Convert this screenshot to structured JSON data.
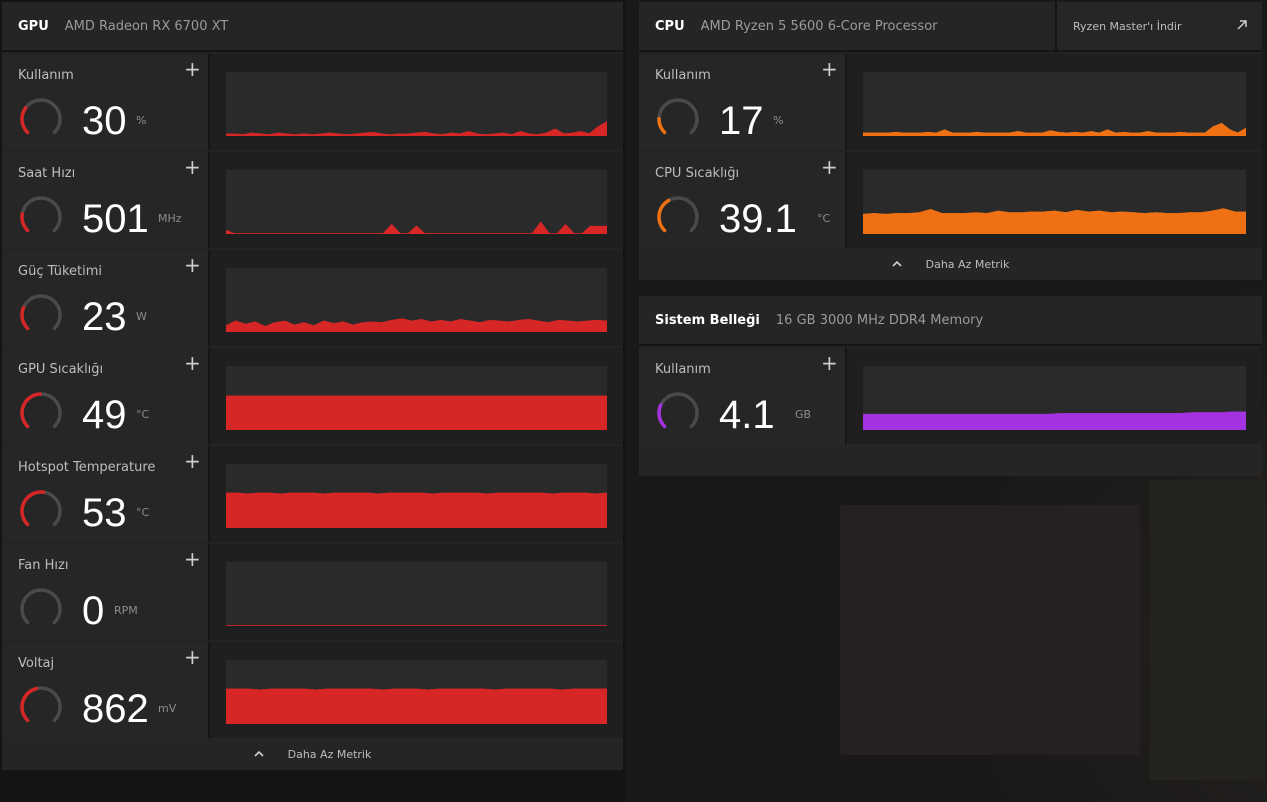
{
  "gpu": {
    "title": "GPU",
    "device": "AMD Radeon RX 6700 XT",
    "accent": "#d62626",
    "metrics": [
      {
        "label": "Kullanım",
        "value": "30",
        "unit": "%",
        "level": 0.3,
        "series": [
          3,
          3,
          2,
          4,
          3,
          2,
          4,
          3,
          2,
          3,
          2,
          3,
          4,
          3,
          2,
          3,
          4,
          5,
          3,
          2,
          3,
          3,
          4,
          5,
          3,
          2,
          4,
          3,
          6,
          3,
          2,
          3,
          4,
          2,
          6,
          3,
          2,
          4,
          9,
          3,
          4,
          6,
          3,
          12,
          18
        ]
      },
      {
        "label": "Saat Hızı",
        "value": "501",
        "unit": "MHz",
        "level": 0.2,
        "series": [
          5,
          0,
          0,
          0,
          0,
          0,
          0,
          0,
          0,
          0,
          0,
          0,
          0,
          0,
          0,
          0,
          0,
          0,
          0,
          0,
          12,
          0,
          0,
          10,
          0,
          0,
          0,
          0,
          0,
          0,
          0,
          0,
          0,
          0,
          0,
          0,
          0,
          0,
          15,
          0,
          0,
          12,
          0,
          0,
          10,
          10,
          10
        ]
      },
      {
        "label": "Güç Tüketimi",
        "value": "23",
        "unit": "W",
        "level": 0.25,
        "series": [
          8,
          14,
          10,
          13,
          7,
          12,
          14,
          9,
          12,
          8,
          14,
          11,
          13,
          9,
          12,
          13,
          12,
          15,
          17,
          14,
          16,
          13,
          15,
          13,
          16,
          14,
          12,
          15,
          14,
          13,
          15,
          16,
          14,
          12,
          15,
          14,
          13,
          14,
          15,
          14
        ]
      },
      {
        "label": "GPU Sıcaklığı",
        "value": "49",
        "unit": "°C",
        "level": 0.49,
        "series": [
          43,
          43,
          43,
          43,
          43,
          43,
          43,
          43,
          43,
          43,
          43,
          43,
          43,
          43,
          43,
          43,
          43,
          43,
          43,
          43,
          43,
          43,
          43,
          43,
          43,
          43,
          43,
          43,
          43,
          43
        ]
      },
      {
        "label": "Hotspot Temperature",
        "value": "53",
        "unit": "°C",
        "level": 0.53,
        "series": [
          44,
          44,
          43,
          44,
          44,
          43,
          44,
          44,
          44,
          43,
          44,
          44,
          44,
          44,
          43,
          44,
          44,
          44,
          44,
          43,
          44,
          44,
          44,
          44,
          43,
          44,
          44,
          44,
          44,
          44,
          43,
          44,
          44,
          44,
          43,
          44
        ]
      },
      {
        "label": "Fan Hızı",
        "value": "0",
        "unit": "RPM",
        "level": 0.0,
        "series": [
          0,
          0,
          0,
          0,
          0,
          0,
          0,
          0,
          0,
          0,
          0,
          0,
          0,
          0,
          0,
          0,
          0,
          0,
          0,
          0
        ]
      },
      {
        "label": "Voltaj",
        "value": "862",
        "unit": "mV",
        "level": 0.45,
        "series": [
          44,
          44,
          44,
          43,
          44,
          44,
          44,
          44,
          43,
          44,
          44,
          44,
          44,
          44,
          43,
          44,
          44,
          44,
          43,
          44,
          44,
          44,
          44,
          44,
          43,
          44,
          44,
          44,
          44,
          44,
          43,
          44,
          44,
          44,
          44
        ]
      }
    ],
    "footer_label": "Daha Az Metrik"
  },
  "cpu": {
    "title": "CPU",
    "device": "AMD Ryzen 5 5600 6-Core Processor",
    "download_label": "Ryzen Master'ı İndir",
    "accent": "#f07113",
    "metrics": [
      {
        "label": "Kullanım",
        "value": "17",
        "unit": "%",
        "level": 0.17,
        "series": [
          4,
          4,
          4,
          4,
          5,
          4,
          4,
          4,
          5,
          4,
          8,
          4,
          4,
          4,
          5,
          4,
          4,
          4,
          4,
          6,
          4,
          4,
          4,
          7,
          5,
          4,
          5,
          4,
          6,
          4,
          8,
          4,
          5,
          4,
          4,
          6,
          4,
          4,
          4,
          5,
          4,
          4,
          4,
          12,
          16,
          8,
          4,
          10
        ]
      },
      {
        "label": "CPU Sıcaklığı",
        "value": "39.1",
        "unit": "°C",
        "level": 0.39,
        "series": [
          25,
          26,
          25,
          26,
          26,
          27,
          31,
          26,
          26,
          26,
          27,
          26,
          29,
          27,
          27,
          28,
          28,
          29,
          27,
          30,
          28,
          29,
          27,
          28,
          27,
          26,
          27,
          26,
          26,
          27,
          27,
          29,
          32,
          28,
          28
        ]
      }
    ],
    "footer_label": "Daha Az Metrik"
  },
  "memory": {
    "title": "Sistem Belleği",
    "device": "16 GB 3000 MHz DDR4 Memory",
    "accent": "#a532e0",
    "metrics": [
      {
        "label": "Kullanım",
        "value": "4.1",
        "unit": "GB",
        "level": 0.26,
        "series": [
          20,
          20,
          20,
          20,
          20,
          20,
          20,
          20,
          20,
          20,
          20,
          20,
          20,
          20,
          20,
          21,
          21,
          21,
          21,
          21,
          21,
          21,
          21,
          21,
          21,
          22,
          22,
          22,
          23,
          23
        ]
      }
    ]
  }
}
